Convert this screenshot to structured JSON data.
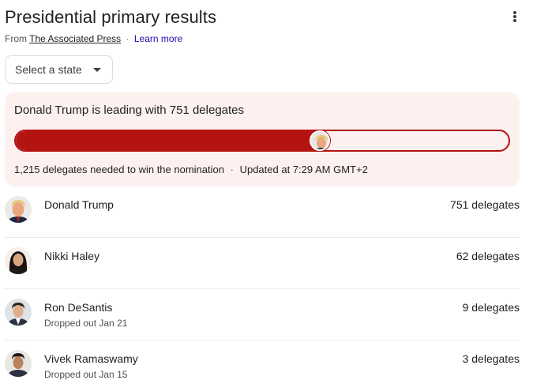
{
  "header": {
    "title": "Presidential primary results",
    "source_prefix": "From",
    "source_name": "The Associated Press",
    "separator": "·",
    "learn_more": "Learn more"
  },
  "state_select": {
    "label": "Select a state"
  },
  "summary": {
    "lead_text": "Donald Trump is leading with 751 delegates",
    "progress_fraction": 0.618,
    "needed_text": "1,215 delegates needed to win the nomination",
    "separator": "·",
    "updated_text": "Updated at 7:29 AM GMT+2",
    "bar_color": "#b31412",
    "card_bg": "#fdf1f0"
  },
  "candidates": [
    {
      "name": "Donald Trump",
      "delegates": "751 delegates",
      "status": "",
      "avatar": "trump-avatar"
    },
    {
      "name": "Nikki Haley",
      "delegates": "62 delegates",
      "status": "",
      "avatar": "haley-avatar"
    },
    {
      "name": "Ron DeSantis",
      "delegates": "9 delegates",
      "status": "Dropped out Jan 21",
      "avatar": "desantis-avatar"
    },
    {
      "name": "Vivek Ramaswamy",
      "delegates": "3 delegates",
      "status": "Dropped out Jan 15",
      "avatar": "ramaswamy-avatar"
    }
  ]
}
